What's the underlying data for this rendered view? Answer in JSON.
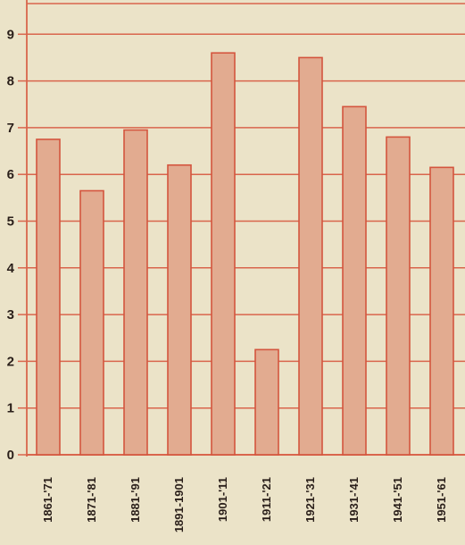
{
  "chart_data": {
    "type": "bar",
    "title": "",
    "xlabel": "",
    "ylabel": "",
    "categories": [
      "1861-'71",
      "1871-'81",
      "1881-'91",
      "1891-1901",
      "1901-'11",
      "1911-'21",
      "1921-'31",
      "1931-'41",
      "1941-'51",
      "1951-'61"
    ],
    "values": [
      6.75,
      5.65,
      6.95,
      6.2,
      8.6,
      2.25,
      8.5,
      7.45,
      6.8,
      6.15
    ],
    "yticks": [
      "0",
      "1",
      "2",
      "3",
      "4",
      "5",
      "6",
      "7",
      "8",
      "9"
    ],
    "ylim": [
      0,
      9.5
    ],
    "grid": true,
    "colors": {
      "bar_fill": "#e2ab90",
      "bar_stroke": "#d4553e",
      "grid": "#d9654c",
      "background": "#ebe3c8",
      "text": "#2a1f1a"
    }
  }
}
